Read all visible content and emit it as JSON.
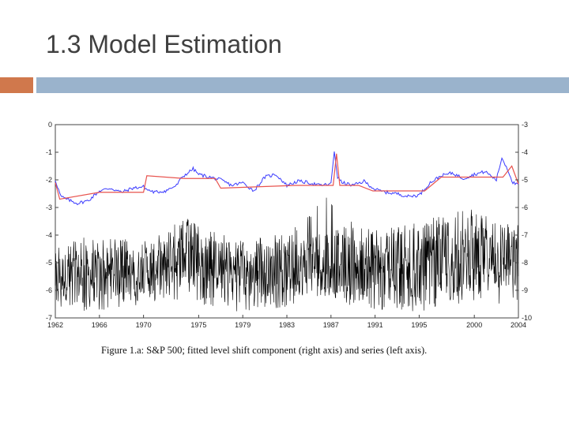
{
  "slide": {
    "title": "1.3 Model Estimation"
  },
  "colors": {
    "accent_orange": "#d0784c",
    "accent_blue": "#9ab3cc",
    "series_black": "#000000",
    "fitted_blue": "#3b3bff",
    "level_shift": "#e8544f"
  },
  "chart_data": {
    "type": "line",
    "caption": "Figure 1.a: S&P 500; fitted level shift component (right axis) and series (left axis).",
    "x_ticks": [
      "1962",
      "1966",
      "1970",
      "1975",
      "1979",
      "1983",
      "1987",
      "1991",
      "1995",
      "2000",
      "2004"
    ],
    "xlim": [
      1962,
      2004
    ],
    "left_axis": {
      "label": "series (left axis)",
      "ylim": [
        -7,
        0
      ],
      "ticks": [
        "0",
        "-1",
        "-2",
        "-3",
        "-4",
        "-5",
        "-6",
        "-7"
      ]
    },
    "right_axis": {
      "label": "fitted level shift component (right axis)",
      "ylim": [
        -10,
        -3
      ],
      "ticks": [
        "-3",
        "-4",
        "-5",
        "-6",
        "-7",
        "-8",
        "-9",
        "-10"
      ]
    },
    "series": [
      {
        "name": "series (left axis)",
        "color": "#000000",
        "note": "high-frequency daily series oscillating roughly between -7 and -3",
        "envelope_x": [
          1962,
          1965,
          1970,
          1974,
          1975,
          1979,
          1983,
          1987,
          1988,
          1991,
          1995,
          2000,
          2004
        ],
        "envelope_high": [
          -4.3,
          -4.0,
          -4.2,
          -3.3,
          -3.7,
          -4.2,
          -3.9,
          -2.5,
          -3.4,
          -3.8,
          -3.5,
          -3.0,
          -3.6
        ],
        "envelope_low": [
          -6.7,
          -6.8,
          -6.5,
          -6.3,
          -6.5,
          -6.8,
          -6.6,
          -6.2,
          -6.5,
          -6.8,
          -6.8,
          -6.4,
          -6.6
        ],
        "center": [
          -5.5,
          -5.5,
          -5.3,
          -4.8,
          -4.9,
          -5.4,
          -5.2,
          -4.9,
          -5.0,
          -5.3,
          -5.3,
          -4.8,
          -5.0
        ]
      },
      {
        "name": "fitted level shift + noise (right axis, blue)",
        "color": "#3b3bff",
        "x": [
          1962,
          1962.5,
          1963,
          1964,
          1965,
          1966,
          1967,
          1968,
          1969,
          1970,
          1970.3,
          1971,
          1972,
          1973,
          1973.5,
          1974,
          1974.5,
          1975,
          1976,
          1977,
          1978,
          1979,
          1980,
          1981,
          1982,
          1983,
          1984,
          1985,
          1986,
          1987,
          1987.3,
          1987.6,
          1988,
          1989,
          1990,
          1991,
          1992,
          1993,
          1994,
          1995,
          1996,
          1997,
          1998,
          1999,
          2000,
          2001,
          2002,
          2002.5,
          2003,
          2003.5,
          2004
        ],
        "y": [
          -5.0,
          -5.6,
          -5.7,
          -5.85,
          -5.75,
          -5.4,
          -5.3,
          -5.45,
          -5.3,
          -5.25,
          -5.35,
          -5.45,
          -5.4,
          -5.2,
          -4.9,
          -4.75,
          -4.6,
          -4.8,
          -4.9,
          -5.0,
          -5.2,
          -5.1,
          -5.4,
          -4.9,
          -4.8,
          -5.2,
          -5.05,
          -5.1,
          -5.2,
          -5.15,
          -3.95,
          -4.9,
          -5.1,
          -5.2,
          -5.05,
          -5.35,
          -5.45,
          -5.5,
          -5.6,
          -5.55,
          -5.1,
          -4.85,
          -4.75,
          -4.95,
          -4.8,
          -4.7,
          -5.0,
          -4.2,
          -4.6,
          -5.1,
          -5.2
        ]
      },
      {
        "name": "fitted level shift component (right axis, red)",
        "color": "#e8544f",
        "x": [
          1962,
          1962.4,
          1966,
          1970,
          1970.3,
          1973.7,
          1976.5,
          1977,
          1983.8,
          1987.2,
          1987.5,
          1987.8,
          1989.5,
          1990.8,
          1995.5,
          1997,
          2002.6,
          2003.4,
          2004
        ],
        "y": [
          -5.1,
          -5.7,
          -5.45,
          -5.45,
          -4.85,
          -4.95,
          -4.95,
          -5.3,
          -5.2,
          -5.2,
          -4.05,
          -5.2,
          -5.2,
          -5.4,
          -5.4,
          -4.9,
          -4.9,
          -4.5,
          -5.15
        ]
      }
    ]
  }
}
